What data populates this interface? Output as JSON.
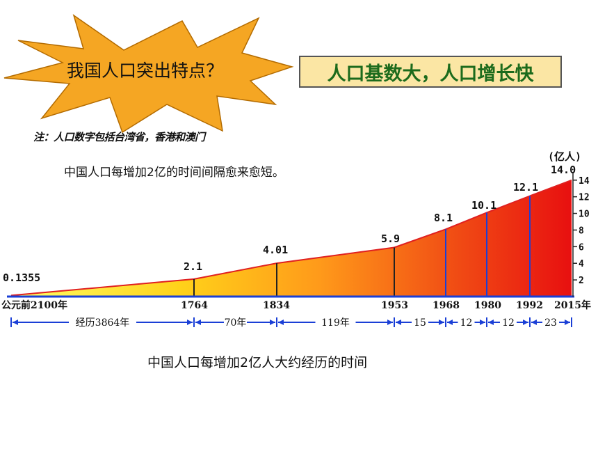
{
  "question": "我国人口突出特点？",
  "answer": "人口基数大，人口增长快",
  "note": "注：人口数字包括台湾省，香港和澳门",
  "subtitle": "中国人口每增加2亿的时间间隔愈来愈短。",
  "caption": "中国人口每增加2亿人大约经历的时间",
  "colors": {
    "burst": "#f5a623",
    "answer_bg": "#fbe6a4",
    "answer_text": "#1c6b1c",
    "axis": "#1a3fd6",
    "top_edge": "#e02020"
  },
  "chart_data": {
    "type": "area",
    "unit": "(亿人)",
    "x_labels": [
      "公元前2100年",
      "1764",
      "1834",
      "1953",
      "1968",
      "1980",
      "1992",
      "2015年"
    ],
    "values": [
      0.1355,
      2.1,
      4.01,
      5.9,
      8.1,
      10.1,
      12.1,
      14.0
    ],
    "value_labels": [
      "0.1355",
      "2.1",
      "4.01",
      "5.9",
      "8.1",
      "10.1",
      "12.1",
      "14.0"
    ],
    "durations": [
      "经历3864年",
      "70年",
      "119年",
      "15",
      "12",
      "12",
      "23"
    ],
    "y_ticks": [
      2,
      4,
      6,
      8,
      10,
      12,
      14
    ],
    "y_tick_labels": [
      "2",
      "4",
      "6",
      "8",
      "10",
      "12",
      "14"
    ],
    "ylim": [
      0,
      14.4
    ]
  }
}
